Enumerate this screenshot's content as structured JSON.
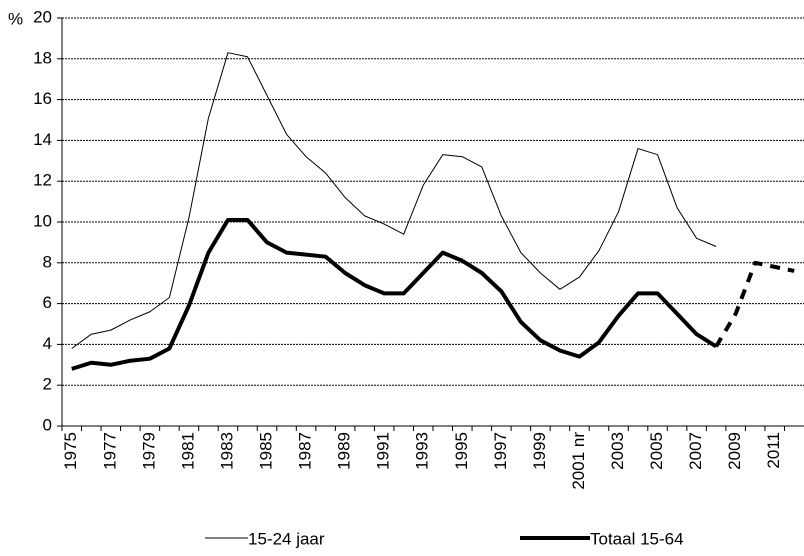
{
  "chart_data": {
    "type": "line",
    "y_label": "%",
    "categories": [
      "1975",
      null,
      "1977",
      null,
      "1979",
      null,
      "1981",
      null,
      "1983",
      null,
      "1985",
      null,
      "1987",
      null,
      "1989",
      null,
      "1991",
      null,
      "1993",
      null,
      "1995",
      null,
      "1997",
      null,
      "1999",
      null,
      "2001 nr",
      null,
      "2003",
      null,
      "2005",
      null,
      "2007",
      null,
      "2009",
      null,
      "2011",
      null
    ],
    "series": [
      {
        "name": "15-24 jaar",
        "color": "#000000",
        "width": 1,
        "values": [
          3.8,
          4.5,
          4.7,
          5.2,
          5.6,
          6.3,
          10.2,
          15.1,
          18.3,
          18.1,
          16.2,
          14.3,
          13.2,
          12.4,
          11.2,
          10.3,
          9.9,
          9.4,
          11.8,
          13.3,
          13.2,
          12.7,
          10.3,
          8.5,
          7.5,
          6.7,
          7.3,
          8.6,
          10.5,
          13.6,
          13.3,
          10.7,
          9.2,
          8.8,
          null,
          null,
          null,
          null
        ]
      },
      {
        "name": "Totaal 15-64",
        "color": "#000000",
        "width": 4,
        "values": [
          2.8,
          3.1,
          3.0,
          3.2,
          3.3,
          3.8,
          5.9,
          8.5,
          10.1,
          10.1,
          9.0,
          8.5,
          8.4,
          8.3,
          7.5,
          6.9,
          6.5,
          6.5,
          7.5,
          8.5,
          8.1,
          7.5,
          6.6,
          5.1,
          4.2,
          3.7,
          3.4,
          4.1,
          5.4,
          6.5,
          6.5,
          5.5,
          4.5,
          3.9,
          null,
          null,
          null,
          null
        ]
      },
      {
        "color": "#000000",
        "width": 4,
        "dashed": true,
        "values": [
          null,
          null,
          null,
          null,
          null,
          null,
          null,
          null,
          null,
          null,
          null,
          null,
          null,
          null,
          null,
          null,
          null,
          null,
          null,
          null,
          null,
          null,
          null,
          null,
          null,
          null,
          null,
          null,
          null,
          null,
          null,
          null,
          null,
          3.9,
          5.5,
          8.0,
          7.8,
          7.6
        ]
      }
    ],
    "ylim": [
      0,
      20
    ],
    "yticks": [
      0,
      2,
      4,
      6,
      8,
      10,
      12,
      14,
      16,
      18,
      20
    ],
    "grid": true
  }
}
